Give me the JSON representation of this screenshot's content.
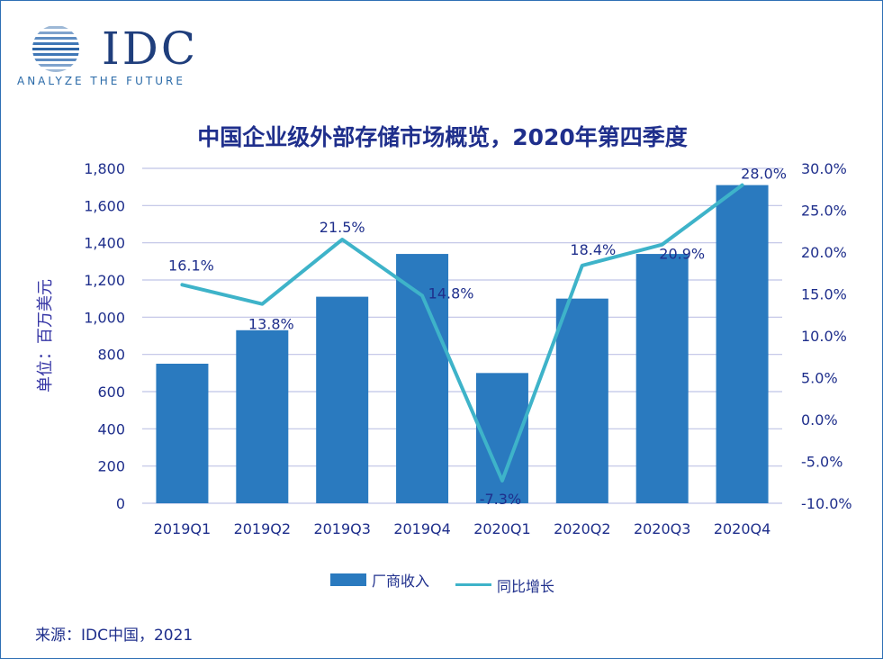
{
  "logo": {
    "name": "IDC",
    "tagline": "ANALYZE THE FUTURE"
  },
  "source": "来源：IDC中国，2021",
  "chart_data": {
    "type": "bar",
    "title": "中国企业级外部存储市场概览，2020年第四季度",
    "ylabel": "单位：百万美元",
    "categories": [
      "2019Q1",
      "2019Q2",
      "2019Q3",
      "2019Q4",
      "2020Q1",
      "2020Q2",
      "2020Q3",
      "2020Q4"
    ],
    "ylim": [
      0,
      1800
    ],
    "y_ticks": [
      "0",
      "200",
      "400",
      "600",
      "800",
      "1,000",
      "1,200",
      "1,400",
      "1,600",
      "1,800"
    ],
    "y2lim": [
      -10,
      30
    ],
    "y2_ticks": [
      "-10.0%",
      "-5.0%",
      "0.0%",
      "5.0%",
      "10.0%",
      "15.0%",
      "20.0%",
      "25.0%",
      "30.0%"
    ],
    "grid": true,
    "legend_position": "bottom",
    "series": [
      {
        "name": "厂商收入",
        "type": "bar",
        "axis": "left",
        "color": "#2a7abf",
        "values": [
          750,
          930,
          1110,
          1340,
          700,
          1100,
          1340,
          1710
        ]
      },
      {
        "name": "同比增长",
        "type": "line",
        "axis": "right",
        "color": "#3eb3c9",
        "values": [
          16.1,
          13.8,
          21.5,
          14.8,
          -7.3,
          18.4,
          20.9,
          28.0
        ],
        "labels": [
          "16.1%",
          "13.8%",
          "21.5%",
          "14.8%",
          "-7.3%",
          "18.4%",
          "20.9%",
          "28.0%"
        ]
      }
    ]
  }
}
